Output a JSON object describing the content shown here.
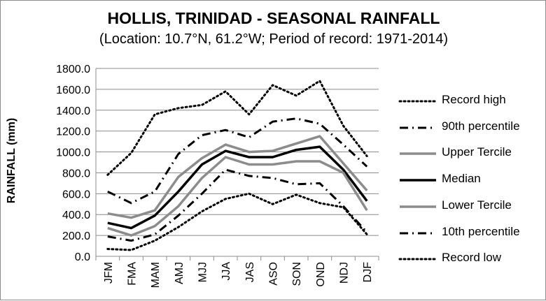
{
  "chart_data": {
    "type": "line",
    "title": "HOLLIS, TRINIDAD - SEASONAL RAINFALL",
    "subtitle": "(Location: 10.7°N, 61.2°W; Period of record: 1971-2014)",
    "ylabel": "RAINFALL (mm)",
    "xlabel": "",
    "ylim": [
      0,
      1800
    ],
    "yticks": [
      "0.0",
      "200.0",
      "400.0",
      "600.0",
      "800.0",
      "1000.0",
      "1200.0",
      "1400.0",
      "1600.0",
      "1800.0"
    ],
    "categories": [
      "JFM",
      "FMA",
      "MAM",
      "AMJ",
      "MJJ",
      "JJA",
      "JAS",
      "ASO",
      "SON",
      "OND",
      "NDJ",
      "DJF"
    ],
    "grid": "horizontal",
    "legend_position": "right",
    "series": [
      {
        "name": "Record high",
        "style": "dotted",
        "color": "#000000",
        "values": [
          780,
          990,
          1360,
          1420,
          1450,
          1580,
          1360,
          1640,
          1540,
          1680,
          1250,
          960
        ]
      },
      {
        "name": "90th percentile",
        "style": "dashdot",
        "color": "#000000",
        "values": [
          620,
          510,
          620,
          980,
          1160,
          1210,
          1140,
          1290,
          1320,
          1270,
          1070,
          860
        ]
      },
      {
        "name": "Upper Tercile",
        "style": "solid-gray",
        "color": "#8c8c8c",
        "values": [
          410,
          370,
          440,
          760,
          940,
          1070,
          1000,
          1010,
          1080,
          1150,
          890,
          630
        ]
      },
      {
        "name": "Median",
        "style": "solid-black",
        "color": "#000000",
        "values": [
          320,
          270,
          390,
          620,
          880,
          1010,
          950,
          950,
          1020,
          1050,
          830,
          530
        ]
      },
      {
        "name": "Lower Tercile",
        "style": "solid-gray",
        "color": "#8c8c8c",
        "values": [
          270,
          200,
          290,
          480,
          750,
          950,
          880,
          880,
          910,
          910,
          800,
          440
        ]
      },
      {
        "name": "10th percentile",
        "style": "dashdot",
        "color": "#000000",
        "values": [
          190,
          150,
          210,
          390,
          600,
          830,
          770,
          750,
          690,
          700,
          480,
          230
        ]
      },
      {
        "name": "Record low",
        "style": "dotted",
        "color": "#000000",
        "values": [
          70,
          60,
          150,
          280,
          430,
          550,
          600,
          500,
          590,
          510,
          470,
          210
        ]
      }
    ]
  }
}
